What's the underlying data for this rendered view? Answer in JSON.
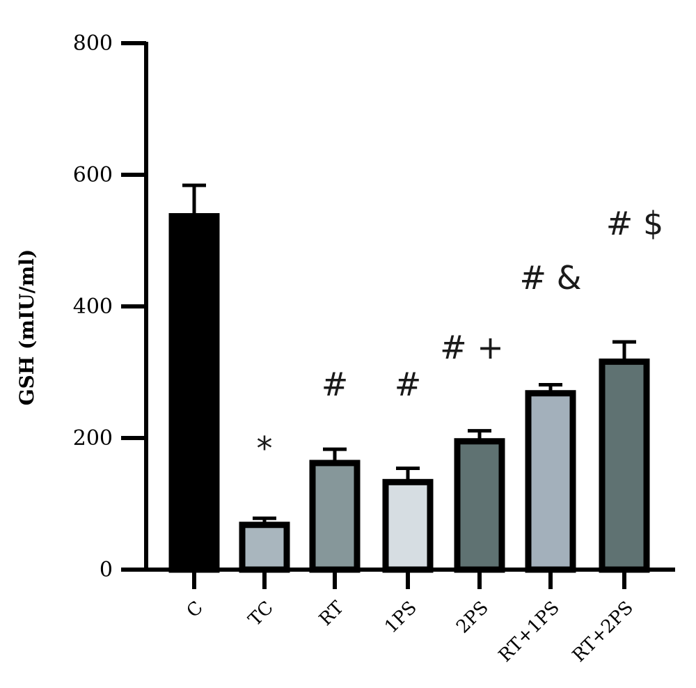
{
  "chart_data": {
    "type": "bar",
    "title": "",
    "xlabel": "",
    "ylabel": "GSH (mIU/ml)",
    "ylim": [
      0,
      800
    ],
    "yticks": [
      0,
      200,
      400,
      600,
      800
    ],
    "grid": false,
    "categories": [
      "C",
      "TC",
      "RT",
      "1PS",
      "2PS",
      "RT+1PS",
      "RT+2PS"
    ],
    "values": [
      537,
      68,
      162,
      133,
      195,
      268,
      316
    ],
    "errors": [
      47,
      10,
      21,
      21,
      16,
      13,
      30
    ],
    "annotations": [
      "",
      "*",
      "#",
      "#",
      "# +",
      "# &",
      "# $"
    ],
    "colors": [
      "#000000",
      "#a9b6be",
      "#86979a",
      "#d6dde2",
      "#5f7272",
      "#a3b0bb",
      "#5f7272"
    ]
  }
}
